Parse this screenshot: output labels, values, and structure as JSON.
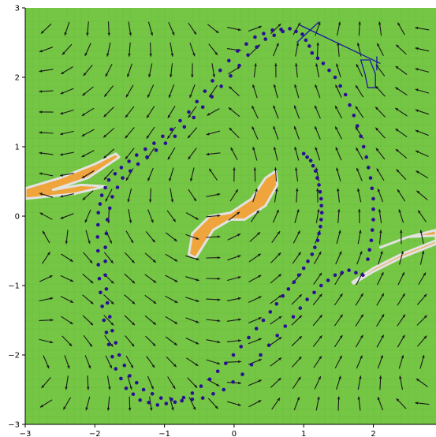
{
  "chart_data": {
    "type": "scatter",
    "title": "",
    "xlabel": "",
    "ylabel": "",
    "xlim": [
      -3,
      2.9
    ],
    "ylim": [
      -3,
      3
    ],
    "grid": false,
    "x_ticks": [
      -3,
      -2,
      -1,
      0,
      1,
      2
    ],
    "y_ticks": [
      -3,
      -2,
      -1,
      0,
      1,
      2,
      3
    ],
    "x_tick_labels": [
      "−3",
      "−2",
      "−1",
      "0",
      "1",
      "2"
    ],
    "y_tick_labels": [
      "−3",
      "−2",
      "−1",
      "0",
      "1",
      "2",
      "3"
    ],
    "colors": {
      "background_field": "#74c644",
      "hazard_fill": "#f0a43c",
      "hazard_edge": "#e2e2e2",
      "arrows": "#1a1a1a",
      "trajectory": "#2a0e96",
      "vehicle": "#1a1aa0"
    },
    "vector_field": {
      "description_free": true,
      "x_range": [
        -2.7,
        2.7
      ],
      "y_range": [
        -2.7,
        2.7
      ],
      "grid_step": 0.3
    },
    "hazard_regions": [
      {
        "name": "",
        "points": [
          [
            -3.0,
            0.4
          ],
          [
            -2.5,
            0.55
          ],
          [
            -2.0,
            0.75
          ],
          [
            -1.7,
            0.9
          ],
          [
            -1.65,
            0.85
          ],
          [
            -2.1,
            0.55
          ],
          [
            -2.6,
            0.38
          ],
          [
            -2.2,
            0.45
          ],
          [
            -1.85,
            0.43
          ],
          [
            -2.3,
            0.32
          ],
          [
            -3.0,
            0.25
          ]
        ]
      },
      {
        "name": "",
        "points": [
          [
            -0.65,
            -0.55
          ],
          [
            -0.6,
            -0.25
          ],
          [
            -0.35,
            0.0
          ],
          [
            -0.05,
            0.05
          ],
          [
            0.25,
            0.25
          ],
          [
            0.45,
            0.55
          ],
          [
            0.6,
            0.65
          ],
          [
            0.62,
            0.45
          ],
          [
            0.45,
            0.15
          ],
          [
            0.15,
            -0.05
          ],
          [
            -0.05,
            -0.05
          ],
          [
            -0.3,
            -0.2
          ],
          [
            -0.55,
            -0.6
          ]
        ]
      },
      {
        "name": "",
        "points": [
          [
            1.7,
            -0.95
          ],
          [
            2.0,
            -0.75
          ],
          [
            2.4,
            -0.55
          ],
          [
            2.9,
            -0.35
          ],
          [
            2.9,
            -0.2
          ],
          [
            2.5,
            -0.3
          ],
          [
            2.1,
            -0.45
          ],
          [
            2.5,
            -0.3
          ],
          [
            2.9,
            -0.28
          ],
          [
            2.9,
            -0.4
          ],
          [
            2.4,
            -0.6
          ],
          [
            2.0,
            -0.8
          ],
          [
            1.72,
            -0.97
          ]
        ]
      }
    ],
    "series": [
      {
        "name": "",
        "points": [
          [
            1.0,
            0.9
          ],
          [
            1.1,
            0.8
          ],
          [
            1.17,
            0.65
          ],
          [
            1.22,
            0.45
          ],
          [
            1.25,
            0.25
          ],
          [
            1.26,
            0.05
          ],
          [
            1.24,
            -0.15
          ],
          [
            1.2,
            -0.35
          ],
          [
            1.12,
            -0.55
          ],
          [
            1.0,
            -0.75
          ],
          [
            0.86,
            -0.95
          ],
          [
            0.7,
            -1.15
          ],
          [
            0.52,
            -1.38
          ],
          [
            0.32,
            -1.62
          ],
          [
            0.1,
            -1.88
          ],
          [
            -0.12,
            -2.12
          ],
          [
            -0.35,
            -2.35
          ],
          [
            -0.6,
            -2.55
          ],
          [
            -0.85,
            -2.68
          ],
          [
            -1.1,
            -2.72
          ],
          [
            -1.35,
            -2.65
          ],
          [
            -1.55,
            -2.48
          ],
          [
            -1.7,
            -2.2
          ],
          [
            -1.8,
            -1.85
          ],
          [
            -1.87,
            -1.5
          ],
          [
            -1.92,
            -1.1
          ],
          [
            -1.95,
            -0.7
          ],
          [
            -1.96,
            -0.3
          ],
          [
            -1.95,
            0.05
          ],
          [
            -1.9,
            0.3
          ],
          [
            -1.8,
            0.52
          ],
          [
            -1.62,
            0.7
          ],
          [
            -1.4,
            0.88
          ],
          [
            -1.15,
            1.05
          ],
          [
            -0.9,
            1.25
          ],
          [
            -0.65,
            1.5
          ],
          [
            -0.42,
            1.8
          ],
          [
            -0.2,
            2.1
          ],
          [
            0.05,
            2.38
          ],
          [
            0.3,
            2.58
          ],
          [
            0.55,
            2.68
          ],
          [
            0.8,
            2.7
          ],
          [
            0.98,
            2.62
          ],
          [
            1.08,
            2.45
          ],
          [
            1.85,
            -0.85
          ],
          [
            1.65,
            -0.78
          ],
          [
            1.45,
            -0.85
          ],
          [
            1.25,
            -1.0
          ],
          [
            1.05,
            -1.2
          ],
          [
            0.85,
            -1.45
          ],
          [
            0.62,
            -1.72
          ],
          [
            0.38,
            -2.0
          ],
          [
            0.12,
            -2.28
          ],
          [
            -0.15,
            -2.5
          ],
          [
            -0.45,
            -2.62
          ],
          [
            -0.75,
            -2.66
          ],
          [
            -1.05,
            -2.62
          ],
          [
            -1.3,
            -2.5
          ],
          [
            -1.5,
            -2.3
          ],
          [
            -1.65,
            -2.0
          ],
          [
            -1.75,
            -1.65
          ],
          [
            -1.82,
            -1.25
          ],
          [
            -1.85,
            -0.85
          ],
          [
            -1.85,
            -0.45
          ],
          [
            -1.82,
            -0.05
          ],
          [
            -1.75,
            0.28
          ],
          [
            -1.6,
            0.55
          ],
          [
            -1.38,
            0.75
          ],
          [
            -1.12,
            0.95
          ],
          [
            -0.85,
            1.15
          ],
          [
            -0.58,
            1.42
          ],
          [
            -0.32,
            1.72
          ],
          [
            -0.05,
            2.02
          ],
          [
            0.2,
            2.32
          ],
          [
            0.45,
            2.55
          ],
          [
            0.7,
            2.66
          ],
          [
            1.12,
            2.35
          ],
          [
            1.28,
            2.2
          ],
          [
            1.45,
            2.0
          ],
          [
            1.6,
            1.75
          ],
          [
            1.72,
            1.45
          ],
          [
            1.82,
            1.15
          ],
          [
            1.9,
            0.85
          ],
          [
            1.96,
            0.55
          ],
          [
            2.0,
            0.25
          ],
          [
            2.0,
            -0.05
          ],
          [
            1.97,
            -0.35
          ],
          [
            1.92,
            -0.62
          ]
        ]
      }
    ],
    "vehicle": {
      "name": "",
      "outline": [
        [
          1.95,
          2.25
        ],
        [
          2.03,
          2.05
        ],
        [
          2.03,
          1.85
        ],
        [
          1.92,
          1.85
        ],
        [
          1.88,
          2.05
        ],
        [
          1.82,
          2.25
        ]
      ],
      "heading_line": [
        [
          0.95,
          2.75
        ],
        [
          2.1,
          2.2
        ]
      ],
      "front_bar": [
        [
          0.9,
          2.5
        ],
        [
          1.22,
          2.8
        ]
      ],
      "rear_bar": [
        [
          2.05,
          2.1
        ],
        [
          2.05,
          2.3
        ]
      ]
    }
  }
}
